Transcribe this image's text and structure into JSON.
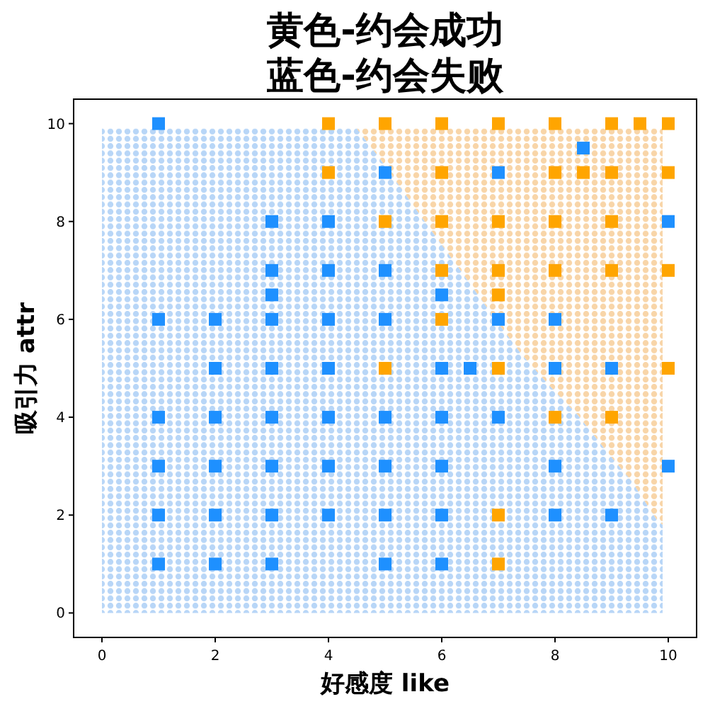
{
  "chart_data": {
    "type": "scatter",
    "title": "黄色-约会成功",
    "subtitle": "蓝色-约会失败",
    "xlabel": "好感度 like",
    "ylabel": "吸引力 attr",
    "xlim": [
      -0.5,
      10.5
    ],
    "ylim": [
      -0.5,
      10.5
    ],
    "xticks": [
      0,
      2,
      4,
      6,
      8,
      10
    ],
    "yticks": [
      0,
      2,
      4,
      6,
      8,
      10
    ],
    "stacked": true,
    "series": [
      {
        "type": "area",
        "color": "#b8d6f7",
        "x": [
          0,
          4.5,
          4.9,
          5.7,
          6.3,
          6.95,
          7.4,
          7.9,
          8.4,
          8.95,
          9.35,
          9.8,
          9.9
        ],
        "values": [
          9.9,
          9.9,
          9.3,
          8.0,
          7.05,
          6.0,
          5.3,
          4.65,
          4.05,
          3.25,
          2.7,
          1.9,
          1.8
        ]
      },
      {
        "type": "area",
        "color": "#f8d5a8",
        "x": [
          0,
          4.5,
          4.9,
          5.7,
          6.3,
          6.95,
          7.4,
          7.9,
          8.4,
          8.95,
          9.35,
          9.8,
          9.9
        ],
        "values": [
          0,
          0,
          0.6,
          1.9,
          2.85,
          3.9,
          4.6,
          5.25,
          5.85,
          6.65,
          7.2,
          8.0,
          8.1
        ]
      },
      {
        "marker": "square",
        "color": "#1e90ff",
        "x": [
          1,
          5,
          3,
          4,
          3,
          4,
          5,
          3,
          1,
          2,
          3,
          4,
          5,
          2,
          3,
          4,
          8.5,
          7,
          10,
          6,
          7,
          8,
          6,
          6.5,
          8,
          9,
          1,
          2,
          3,
          4,
          5,
          6,
          7,
          1,
          2,
          3,
          4,
          5,
          6,
          8,
          10,
          1,
          2,
          3,
          4,
          5,
          6,
          8,
          9,
          1,
          2,
          3,
          5,
          6
        ],
        "values": [
          10,
          9,
          8,
          8,
          7,
          7,
          7,
          6.5,
          6,
          6,
          6,
          6,
          6,
          5,
          5,
          5,
          9.5,
          9,
          8,
          6.5,
          6,
          6,
          5,
          5,
          5,
          5,
          4,
          4,
          4,
          4,
          4,
          4,
          4,
          3,
          3,
          3,
          3,
          3,
          3,
          3,
          3,
          2,
          2,
          2,
          2,
          2,
          2,
          2,
          2,
          1,
          1,
          1,
          1,
          1
        ]
      },
      {
        "marker": "square",
        "color": "#ffa500",
        "x": [
          4,
          5,
          6,
          7,
          8,
          9,
          9.5,
          10,
          4,
          6,
          8,
          8.5,
          9,
          10,
          5,
          6,
          7,
          8,
          9,
          6,
          7,
          8,
          9,
          10,
          7,
          6,
          5,
          7,
          10,
          8,
          9,
          7,
          7
        ],
        "values": [
          10,
          10,
          10,
          10,
          10,
          10,
          10,
          10,
          9,
          9,
          9,
          9,
          9,
          9,
          8,
          8,
          8,
          8,
          8,
          7,
          7,
          7,
          7,
          7,
          6.5,
          6,
          5,
          5,
          5,
          4,
          4,
          2,
          1
        ]
      }
    ]
  }
}
